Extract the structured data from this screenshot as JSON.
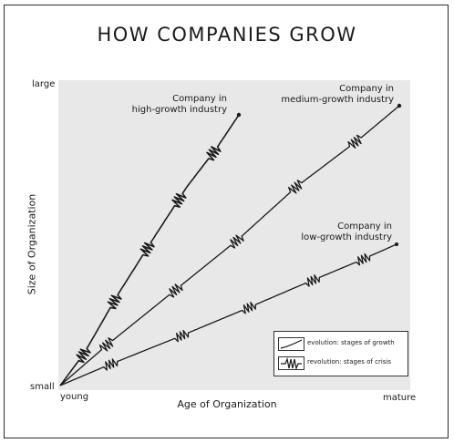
{
  "title": "HOW COMPANIES GROW",
  "axes": {
    "y_label": "Size of Organization",
    "x_label": "Age of Organization",
    "y_top": "large",
    "y_bottom": "small",
    "x_left": "young",
    "x_right": "mature"
  },
  "lines": [
    {
      "id": "high",
      "label_line1": "Company in",
      "label_line2": "high-growth industry"
    },
    {
      "id": "medium",
      "label_line1": "Company in",
      "label_line2": "medium-growth industry"
    },
    {
      "id": "low",
      "label_line1": "Company in",
      "label_line2": "low-growth industry"
    }
  ],
  "legend": {
    "evolution": "evolution:  stages of growth",
    "revolution": "revolution:  stages of crisis"
  },
  "colors": {
    "line": "#1a1a1a",
    "plot_bg": "#e8e8e8",
    "frame": "#2a2a2a"
  }
}
